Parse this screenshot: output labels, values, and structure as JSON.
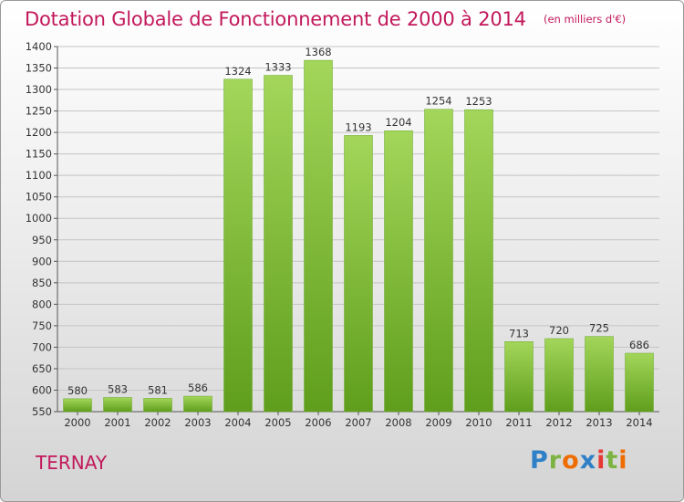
{
  "chart_data": {
    "type": "bar",
    "title": "Dotation Globale de Fonctionnement de 2000 à 2014",
    "unit_note": "(en milliers d'€)",
    "categories": [
      "2000",
      "2001",
      "2002",
      "2003",
      "2004",
      "2005",
      "2006",
      "2007",
      "2008",
      "2009",
      "2010",
      "2011",
      "2012",
      "2013",
      "2014"
    ],
    "values": [
      580,
      583,
      581,
      586,
      1324,
      1333,
      1368,
      1193,
      1204,
      1254,
      1253,
      713,
      720,
      725,
      686
    ],
    "ylim": [
      550,
      1400
    ],
    "yticks": [
      550,
      600,
      650,
      700,
      750,
      800,
      850,
      900,
      950,
      1000,
      1050,
      1100,
      1150,
      1200,
      1250,
      1300,
      1350,
      1400
    ],
    "grid": true,
    "bar_color": "#7cb342"
  },
  "commune": "TERNAY",
  "logo": {
    "parts": [
      "P",
      "r",
      "o",
      "x",
      "i",
      "t",
      "i"
    ]
  }
}
